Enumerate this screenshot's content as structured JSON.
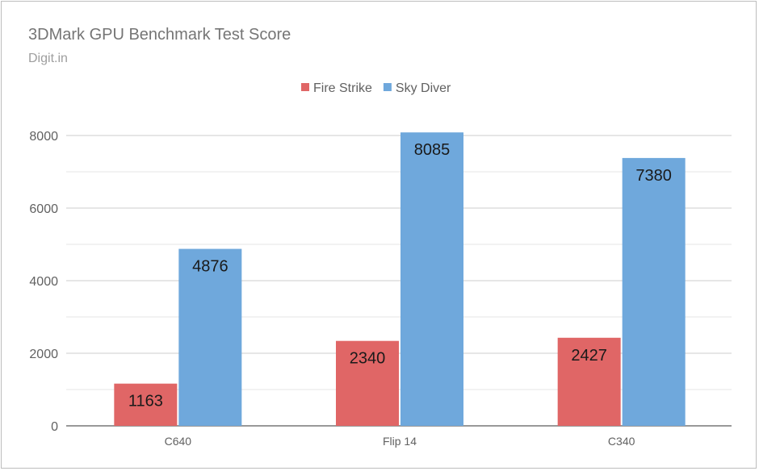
{
  "chart_data": {
    "type": "bar",
    "title": "3DMark GPU Benchmark Test Score",
    "subtitle": "Digit.in",
    "categories": [
      "C640",
      "Flip 14",
      "C340"
    ],
    "series": [
      {
        "name": "Fire Strike",
        "color": "#e06666",
        "values": [
          1163,
          2340,
          2427
        ]
      },
      {
        "name": "Sky Diver",
        "color": "#6fa8dc",
        "values": [
          4876,
          8085,
          7380
        ]
      }
    ],
    "ylim": [
      0,
      8000
    ],
    "yticks": [
      0,
      2000,
      4000,
      6000,
      8000
    ],
    "grid": true,
    "legend": "top-center"
  }
}
